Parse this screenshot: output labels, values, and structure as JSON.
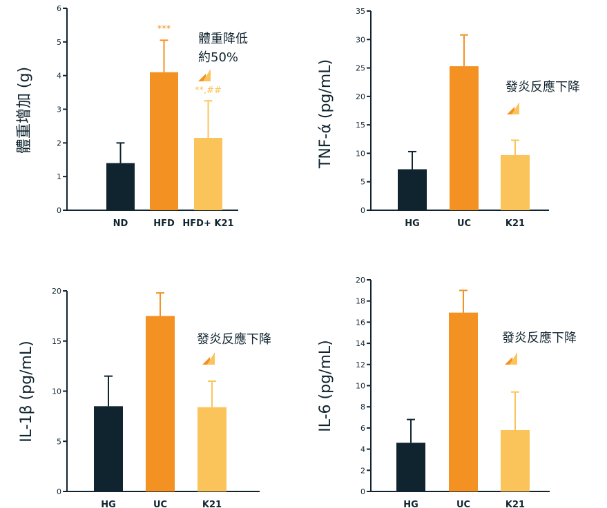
{
  "colors": {
    "dark": "#10242f",
    "orange": "#f39122",
    "yellow": "#fbc45a",
    "axis": "#10242f"
  },
  "icon": "down-arrow-triangles-icon",
  "chart_data": [
    {
      "type": "bar",
      "ylabel": "體重增加 (g)",
      "categories": [
        "ND",
        "HFD",
        "HFD+ K21"
      ],
      "values": [
        1.4,
        4.1,
        2.15
      ],
      "errors": [
        0.6,
        0.95,
        1.1
      ],
      "bar_colors": [
        "#10242f",
        "#f39122",
        "#fbc45a"
      ],
      "ylim": [
        0,
        6
      ],
      "yticks": [
        "0",
        "1",
        "2",
        "3",
        "4",
        "5",
        "6"
      ],
      "significance": [
        "",
        "***",
        "**,##"
      ],
      "annotation": [
        "體重降低",
        "約50%"
      ]
    },
    {
      "type": "bar",
      "ylabel": "TNF-ά (pg/mL)",
      "categories": [
        "HG",
        "UC",
        "K21"
      ],
      "values": [
        7.2,
        25.3,
        9.7
      ],
      "errors": [
        3.1,
        5.5,
        2.6
      ],
      "bar_colors": [
        "#10242f",
        "#f39122",
        "#fbc45a"
      ],
      "ylim": [
        0,
        35
      ],
      "yticks": [
        "0",
        "5",
        "10",
        "15",
        "20",
        "25",
        "30",
        "35"
      ],
      "annotation": [
        "發炎反應下降"
      ]
    },
    {
      "type": "bar",
      "ylabel": "IL-1β (pg/mL)",
      "categories": [
        "HG",
        "UC",
        "K21"
      ],
      "values": [
        8.5,
        17.5,
        8.4
      ],
      "errors": [
        3.0,
        2.3,
        2.6
      ],
      "bar_colors": [
        "#10242f",
        "#f39122",
        "#fbc45a"
      ],
      "ylim": [
        0,
        20
      ],
      "yticks": [
        "0",
        "5",
        "10",
        "15",
        "20"
      ],
      "annotation": [
        "發炎反應下降"
      ]
    },
    {
      "type": "bar",
      "ylabel": "IL-6 (pg/mL)",
      "categories": [
        "HG",
        "UC",
        "K21"
      ],
      "values": [
        4.6,
        16.9,
        5.8
      ],
      "errors": [
        2.2,
        2.1,
        3.6
      ],
      "bar_colors": [
        "#10242f",
        "#f39122",
        "#fbc45a"
      ],
      "ylim": [
        0,
        20
      ],
      "yticks": [
        "0",
        "2",
        "4",
        "6",
        "8",
        "10",
        "12",
        "14",
        "16",
        "18",
        "20"
      ],
      "annotation": [
        "發炎反應下降"
      ]
    }
  ]
}
